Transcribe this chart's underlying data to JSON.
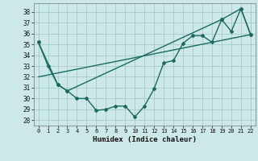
{
  "xlabel": "Humidex (Indice chaleur)",
  "bg_color": "#cce8e8",
  "grid_color": "#aacfcf",
  "line_color": "#1a6b5e",
  "xlim": [
    -0.5,
    22.5
  ],
  "ylim": [
    27.5,
    38.8
  ],
  "yticks": [
    28,
    29,
    30,
    31,
    32,
    33,
    34,
    35,
    36,
    37,
    38
  ],
  "xticks": [
    0,
    1,
    2,
    3,
    4,
    5,
    6,
    7,
    8,
    9,
    10,
    11,
    12,
    13,
    14,
    15,
    16,
    17,
    18,
    19,
    20,
    21,
    22
  ],
  "series1_x": [
    0,
    1,
    2,
    3,
    4,
    5,
    6,
    7,
    8,
    9,
    10,
    11,
    12,
    13,
    14,
    15,
    16,
    17,
    18,
    19,
    20,
    21,
    22
  ],
  "series1_y": [
    35.2,
    33.0,
    31.3,
    30.7,
    30.0,
    30.0,
    28.9,
    29.0,
    29.3,
    29.3,
    28.3,
    29.3,
    30.9,
    33.3,
    33.5,
    35.1,
    35.8,
    35.8,
    35.2,
    37.3,
    36.2,
    38.3,
    35.9
  ],
  "series2_x": [
    0,
    2,
    3,
    19,
    21,
    22
  ],
  "series2_y": [
    35.2,
    31.3,
    30.7,
    37.3,
    38.3,
    35.9
  ],
  "series3_x": [
    0,
    22
  ],
  "series3_y": [
    32.0,
    35.9
  ]
}
